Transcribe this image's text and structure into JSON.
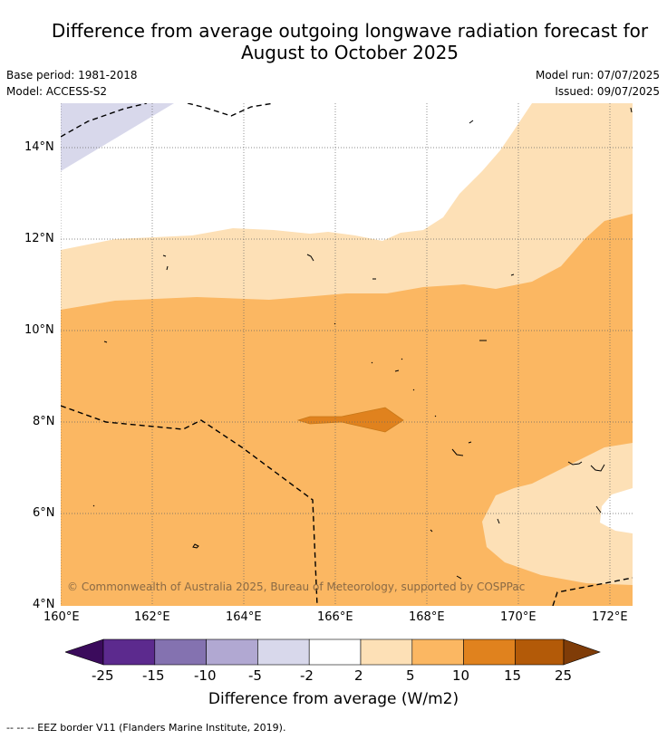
{
  "title_line1": "Difference from average outgoing longwave radiation forecast for",
  "title_line2": "August to October 2025",
  "base_period": "Base period: 1981-2018",
  "model": "Model: ACCESS-S2",
  "model_run": "Model run: 07/07/2025",
  "issued": "Issued: 09/07/2025",
  "copyright": "© Commonwealth of Australia 2025, Bureau of Meteorology, supported by COSPPac",
  "map": {
    "lon_range": [
      160,
      172.5
    ],
    "lat_range": [
      4,
      15
    ],
    "lon_ticks": [
      "160°E",
      "162°E",
      "164°E",
      "166°E",
      "168°E",
      "170°E",
      "172°E"
    ],
    "lat_ticks": [
      "14°N",
      "12°N",
      "10°N",
      "8°N",
      "6°N",
      "4°N"
    ],
    "grid": true,
    "border_layer": "EEZ border (dashed)"
  },
  "colorbar": {
    "labels": [
      "-25",
      "-15",
      "-10",
      "-5",
      "-2",
      "2",
      "5",
      "10",
      "15",
      "25"
    ],
    "colors": [
      "#3b0b5c",
      "#5c2a8e",
      "#8472b0",
      "#b1a8d2",
      "#d8d8eb",
      "#ffffff",
      "#fde0b6",
      "#fbb762",
      "#e0821e",
      "#b35a08",
      "#7f3c08"
    ],
    "title": "Difference from average (W/m2)"
  },
  "footnote": "--  --  -- EEZ border V11 (Flanders Marine Institute, 2019)."
}
